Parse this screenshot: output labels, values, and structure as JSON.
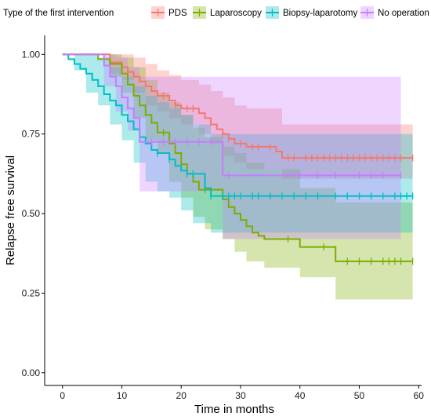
{
  "chart_data": {
    "type": "line",
    "style": "kaplan-meier step curves with confidence bands and censor marks",
    "xlabel": "Time in months",
    "ylabel": "Relapse free survival",
    "xlim": [
      -3,
      60.5
    ],
    "ylim": [
      -0.04,
      1.06
    ],
    "xticks": [
      0,
      10,
      20,
      30,
      40,
      50,
      60
    ],
    "yticks": [
      0.0,
      0.25,
      0.5,
      0.75,
      1.0
    ],
    "ytick_labels": [
      "0.00",
      "0.25",
      "0.50",
      "0.75",
      "1.00"
    ],
    "grid": false,
    "legend": {
      "title": "Type of the first intervention",
      "placement": "top"
    },
    "series": [
      {
        "name": "PDS",
        "color": "#F8766D",
        "steps": [
          [
            0,
            1.0
          ],
          [
            8,
            0.975
          ],
          [
            10,
            0.96
          ],
          [
            11,
            0.945
          ],
          [
            12,
            0.93
          ],
          [
            13,
            0.915
          ],
          [
            14,
            0.9
          ],
          [
            15,
            0.885
          ],
          [
            16,
            0.87
          ],
          [
            18,
            0.855
          ],
          [
            19,
            0.84
          ],
          [
            20,
            0.83
          ],
          [
            23,
            0.815
          ],
          [
            24,
            0.8
          ],
          [
            25,
            0.78
          ],
          [
            26,
            0.765
          ],
          [
            27,
            0.75
          ],
          [
            28,
            0.735
          ],
          [
            29,
            0.72
          ],
          [
            31,
            0.71
          ],
          [
            36,
            0.695
          ],
          [
            37,
            0.675
          ],
          [
            59,
            0.675
          ]
        ],
        "upper": [
          [
            0,
            1.0
          ],
          [
            10,
            1.0
          ],
          [
            12,
            0.99
          ],
          [
            14,
            0.97
          ],
          [
            16,
            0.95
          ],
          [
            18,
            0.935
          ],
          [
            20,
            0.92
          ],
          [
            23,
            0.905
          ],
          [
            25,
            0.885
          ],
          [
            27,
            0.865
          ],
          [
            29,
            0.84
          ],
          [
            31,
            0.83
          ],
          [
            37,
            0.78
          ],
          [
            59,
            0.78
          ]
        ],
        "lower": [
          [
            0,
            1.0
          ],
          [
            8,
            0.94
          ],
          [
            10,
            0.92
          ],
          [
            12,
            0.88
          ],
          [
            14,
            0.84
          ],
          [
            16,
            0.82
          ],
          [
            18,
            0.8
          ],
          [
            20,
            0.78
          ],
          [
            23,
            0.75
          ],
          [
            25,
            0.72
          ],
          [
            27,
            0.68
          ],
          [
            29,
            0.66
          ],
          [
            31,
            0.64
          ],
          [
            37,
            0.61
          ],
          [
            59,
            0.61
          ]
        ],
        "censor_times": [
          17,
          19,
          21,
          22,
          27,
          28,
          30,
          32,
          33,
          35,
          38,
          39,
          41,
          42,
          43,
          44,
          45,
          46,
          47,
          48,
          49,
          50,
          51,
          52,
          53,
          54,
          55,
          56,
          57,
          59
        ]
      },
      {
        "name": "Laparoscopy",
        "color": "#7CAE00",
        "steps": [
          [
            0,
            1.0
          ],
          [
            6,
            0.985
          ],
          [
            8,
            0.97
          ],
          [
            10,
            0.94
          ],
          [
            11,
            0.905
          ],
          [
            12,
            0.87
          ],
          [
            13,
            0.84
          ],
          [
            14,
            0.81
          ],
          [
            15,
            0.785
          ],
          [
            16,
            0.755
          ],
          [
            18,
            0.72
          ],
          [
            19,
            0.69
          ],
          [
            20,
            0.655
          ],
          [
            21,
            0.625
          ],
          [
            22,
            0.6
          ],
          [
            23,
            0.575
          ],
          [
            27,
            0.545
          ],
          [
            28,
            0.52
          ],
          [
            29,
            0.5
          ],
          [
            30,
            0.48
          ],
          [
            31,
            0.46
          ],
          [
            32,
            0.44
          ],
          [
            33,
            0.43
          ],
          [
            34,
            0.42
          ],
          [
            36,
            0.42
          ],
          [
            40,
            0.395
          ],
          [
            46,
            0.35
          ],
          [
            59,
            0.35
          ]
        ],
        "upper": [
          [
            0,
            1.0
          ],
          [
            8,
            1.0
          ],
          [
            10,
            0.99
          ],
          [
            12,
            0.96
          ],
          [
            14,
            0.92
          ],
          [
            16,
            0.88
          ],
          [
            18,
            0.85
          ],
          [
            20,
            0.81
          ],
          [
            22,
            0.77
          ],
          [
            24,
            0.74
          ],
          [
            27,
            0.71
          ],
          [
            29,
            0.69
          ],
          [
            31,
            0.66
          ],
          [
            34,
            0.64
          ],
          [
            40,
            0.58
          ],
          [
            46,
            0.535
          ],
          [
            59,
            0.535
          ]
        ],
        "lower": [
          [
            0,
            1.0
          ],
          [
            8,
            0.93
          ],
          [
            10,
            0.88
          ],
          [
            12,
            0.8
          ],
          [
            14,
            0.73
          ],
          [
            16,
            0.69
          ],
          [
            18,
            0.6
          ],
          [
            20,
            0.55
          ],
          [
            22,
            0.49
          ],
          [
            24,
            0.45
          ],
          [
            27,
            0.42
          ],
          [
            29,
            0.38
          ],
          [
            31,
            0.35
          ],
          [
            34,
            0.33
          ],
          [
            40,
            0.3
          ],
          [
            46,
            0.23
          ],
          [
            59,
            0.23
          ]
        ],
        "censor_times": [
          17,
          24,
          38,
          44,
          48,
          50,
          52,
          54,
          55,
          56,
          57,
          59
        ]
      },
      {
        "name": "Biopsy-laparotomy",
        "color": "#00BFC4",
        "steps": [
          [
            0,
            1.0
          ],
          [
            1,
            0.985
          ],
          [
            2,
            0.97
          ],
          [
            3,
            0.955
          ],
          [
            4,
            0.94
          ],
          [
            5,
            0.92
          ],
          [
            6,
            0.9
          ],
          [
            7,
            0.875
          ],
          [
            8,
            0.855
          ],
          [
            9,
            0.84
          ],
          [
            10,
            0.81
          ],
          [
            11,
            0.79
          ],
          [
            12,
            0.765
          ],
          [
            13,
            0.74
          ],
          [
            14,
            0.72
          ],
          [
            15,
            0.7
          ],
          [
            16,
            0.69
          ],
          [
            18,
            0.67
          ],
          [
            19,
            0.65
          ],
          [
            20,
            0.635
          ],
          [
            21,
            0.625
          ],
          [
            24,
            0.58
          ],
          [
            25,
            0.555
          ],
          [
            59,
            0.555
          ]
        ],
        "upper": [
          [
            0,
            1.0
          ],
          [
            4,
            1.0
          ],
          [
            6,
            0.99
          ],
          [
            8,
            0.96
          ],
          [
            10,
            0.93
          ],
          [
            12,
            0.9
          ],
          [
            14,
            0.87
          ],
          [
            16,
            0.85
          ],
          [
            18,
            0.83
          ],
          [
            20,
            0.81
          ],
          [
            22,
            0.78
          ],
          [
            25,
            0.75
          ],
          [
            59,
            0.71
          ]
        ],
        "lower": [
          [
            0,
            1.0
          ],
          [
            2,
            0.95
          ],
          [
            4,
            0.88
          ],
          [
            6,
            0.84
          ],
          [
            8,
            0.78
          ],
          [
            10,
            0.73
          ],
          [
            12,
            0.66
          ],
          [
            14,
            0.6
          ],
          [
            16,
            0.57
          ],
          [
            18,
            0.55
          ],
          [
            20,
            0.51
          ],
          [
            22,
            0.47
          ],
          [
            25,
            0.44
          ],
          [
            59,
            0.43
          ]
        ],
        "censor_times": [
          16,
          18,
          21,
          22,
          24,
          25,
          27,
          28,
          29,
          30,
          32,
          33,
          35,
          37,
          39,
          41,
          43,
          46,
          48,
          50,
          52,
          54,
          56,
          57,
          58,
          59
        ]
      },
      {
        "name": "No operation",
        "color": "#C77CFF",
        "steps": [
          [
            0,
            1.0
          ],
          [
            7,
            0.965
          ],
          [
            8,
            0.93
          ],
          [
            9,
            0.9
          ],
          [
            10,
            0.865
          ],
          [
            11,
            0.83
          ],
          [
            12,
            0.8
          ],
          [
            13,
            0.725
          ],
          [
            26,
            0.725
          ],
          [
            27,
            0.62
          ],
          [
            57,
            0.62
          ]
        ],
        "upper": [
          [
            0,
            1.0
          ],
          [
            7,
            1.0
          ],
          [
            9,
            0.99
          ],
          [
            11,
            0.96
          ],
          [
            13,
            0.93
          ],
          [
            27,
            0.93
          ],
          [
            57,
            0.93
          ]
        ],
        "lower": [
          [
            0,
            1.0
          ],
          [
            7,
            0.9
          ],
          [
            9,
            0.82
          ],
          [
            11,
            0.76
          ],
          [
            13,
            0.57
          ],
          [
            27,
            0.42
          ],
          [
            57,
            0.42
          ]
        ],
        "censor_times": [
          15,
          17,
          19,
          21,
          23,
          25,
          28,
          38,
          40,
          43,
          46,
          50,
          52,
          54,
          57
        ]
      }
    ]
  }
}
